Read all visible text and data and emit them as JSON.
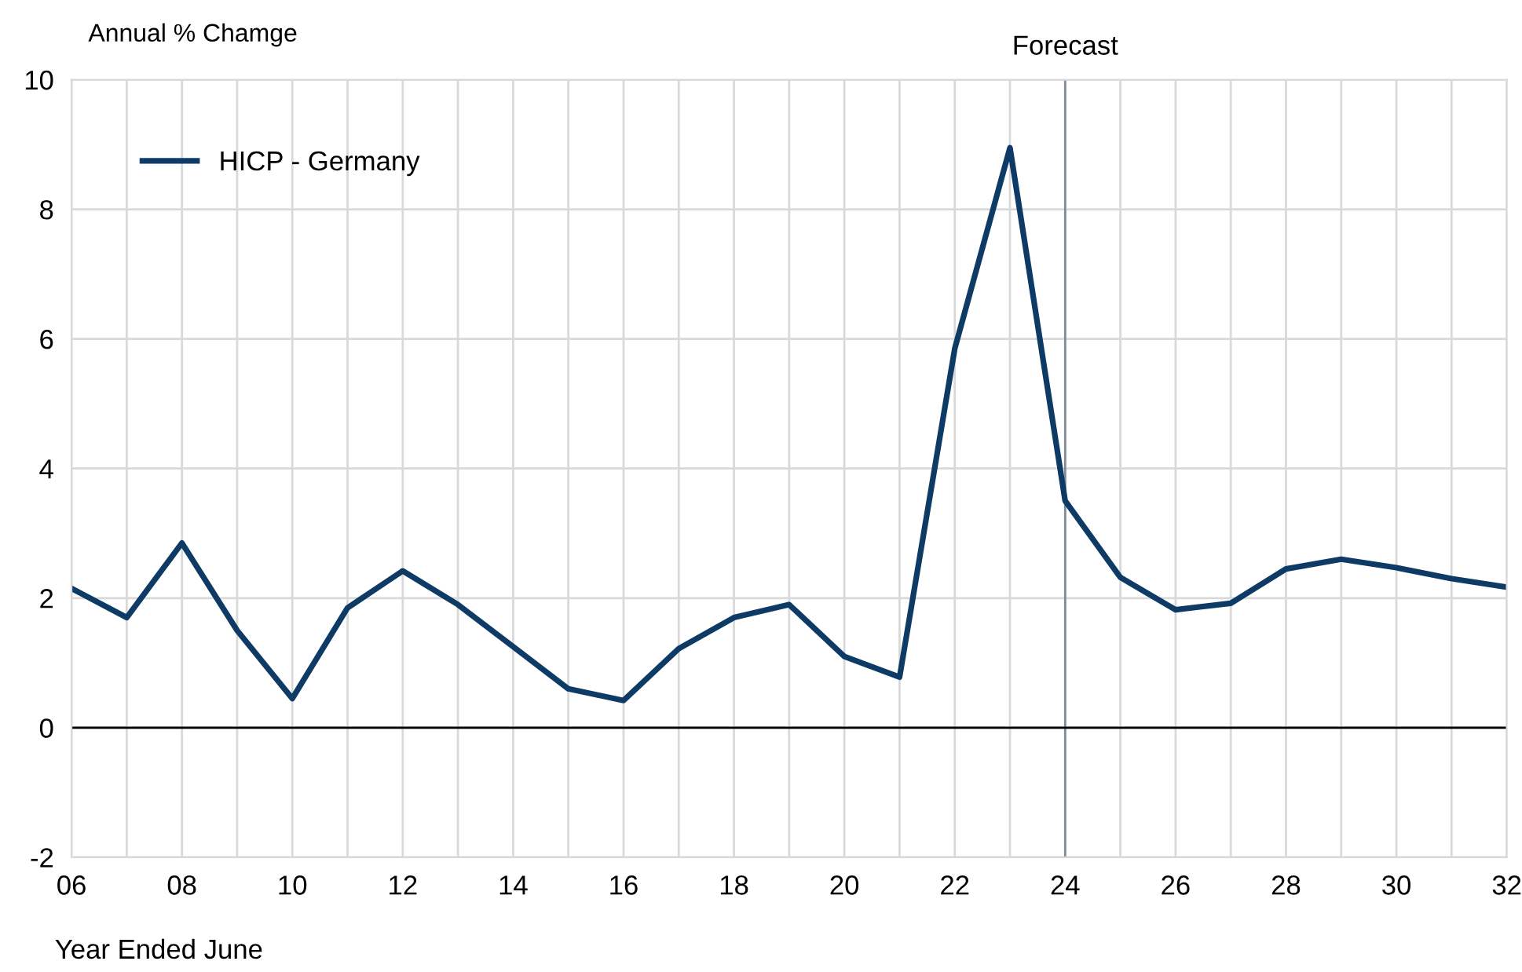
{
  "chart_data": {
    "type": "line",
    "ylabel": "Annual % Chamge",
    "xlabel": "Year Ended June",
    "x": [
      2006,
      2007,
      2008,
      2009,
      2010,
      2011,
      2012,
      2013,
      2014,
      2015,
      2016,
      2017,
      2018,
      2019,
      2020,
      2021,
      2022,
      2023,
      2024,
      2025,
      2026,
      2027,
      2028,
      2029,
      2030,
      2031,
      2032
    ],
    "series": [
      {
        "name": "HICP - Germany",
        "color": "#0d3b66",
        "values": [
          2.15,
          1.7,
          2.85,
          1.5,
          0.45,
          1.85,
          2.42,
          1.9,
          1.25,
          0.6,
          0.42,
          1.22,
          1.7,
          1.9,
          1.1,
          0.78,
          5.85,
          8.95,
          3.5,
          2.32,
          1.82,
          1.92,
          2.45,
          2.6,
          2.47,
          2.3,
          2.17
        ]
      }
    ],
    "xlim": [
      2006,
      2032
    ],
    "ylim": [
      -2,
      10
    ],
    "xticks": [
      {
        "value": 2006,
        "label": "06"
      },
      {
        "value": 2007,
        "label": null
      },
      {
        "value": 2008,
        "label": "08"
      },
      {
        "value": 2009,
        "label": null
      },
      {
        "value": 2010,
        "label": "10"
      },
      {
        "value": 2011,
        "label": null
      },
      {
        "value": 2012,
        "label": "12"
      },
      {
        "value": 2013,
        "label": null
      },
      {
        "value": 2014,
        "label": "14"
      },
      {
        "value": 2015,
        "label": null
      },
      {
        "value": 2016,
        "label": "16"
      },
      {
        "value": 2017,
        "label": null
      },
      {
        "value": 2018,
        "label": "18"
      },
      {
        "value": 2019,
        "label": null
      },
      {
        "value": 2020,
        "label": "20"
      },
      {
        "value": 2021,
        "label": null
      },
      {
        "value": 2022,
        "label": "22"
      },
      {
        "value": 2023,
        "label": null
      },
      {
        "value": 2024,
        "label": "24"
      },
      {
        "value": 2025,
        "label": null
      },
      {
        "value": 2026,
        "label": "26"
      },
      {
        "value": 2027,
        "label": null
      },
      {
        "value": 2028,
        "label": "28"
      },
      {
        "value": 2029,
        "label": null
      },
      {
        "value": 2030,
        "label": "30"
      },
      {
        "value": 2031,
        "label": null
      },
      {
        "value": 2032,
        "label": "32"
      }
    ],
    "yticks": [
      -2,
      0,
      2,
      4,
      6,
      8,
      10
    ],
    "ref_lines": [
      {
        "axis": "x",
        "value": 2024,
        "label": "Forecast",
        "color": "#7f8c99"
      },
      {
        "axis": "y",
        "value": 0,
        "label": null,
        "color": "#000000"
      }
    ],
    "grid": true,
    "legend": "top left",
    "marker": "none",
    "line_style": "solid"
  }
}
